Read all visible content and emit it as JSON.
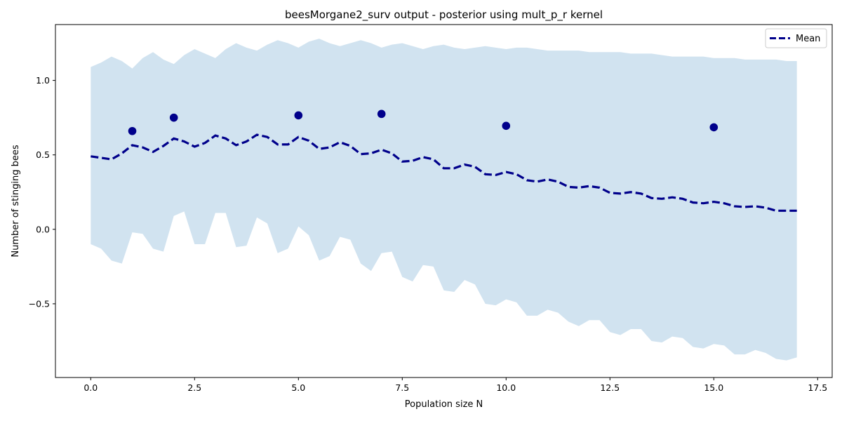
{
  "chart_data": {
    "type": "line",
    "title": "beesMorgane2_surv output - posterior using mult_p_r kernel",
    "xlabel": "Population size N",
    "ylabel": "Number of stinging bees",
    "xlim": [
      -0.85,
      17.85
    ],
    "ylim": [
      -0.995,
      1.375
    ],
    "xticks": [
      0.0,
      2.5,
      5.0,
      7.5,
      10.0,
      12.5,
      15.0,
      17.5
    ],
    "xtick_labels": [
      "0.0",
      "2.5",
      "5.0",
      "7.5",
      "10.0",
      "12.5",
      "15.0",
      "17.5"
    ],
    "yticks": [
      -0.5,
      0.0,
      0.5,
      1.0
    ],
    "ytick_labels": [
      "−0.5",
      "0.0",
      "0.5",
      "1.0"
    ],
    "grid": false,
    "legend": {
      "position": "top-right",
      "entries": [
        "Mean"
      ]
    },
    "colors": {
      "mean": "#00008b",
      "band": "#d1e3f0",
      "points": "#00008b"
    },
    "series": [
      {
        "name": "Mean",
        "style": "dashed",
        "x": [
          0,
          0.25,
          0.5,
          0.75,
          1.0,
          1.25,
          1.5,
          1.75,
          2.0,
          2.25,
          2.5,
          2.75,
          3.0,
          3.25,
          3.5,
          3.75,
          4.0,
          4.25,
          4.5,
          4.75,
          5.0,
          5.25,
          5.5,
          5.75,
          6.0,
          6.25,
          6.5,
          6.75,
          7.0,
          7.25,
          7.5,
          7.75,
          8.0,
          8.25,
          8.5,
          8.75,
          9.0,
          9.25,
          9.5,
          9.75,
          10.0,
          10.25,
          10.5,
          10.75,
          11.0,
          11.25,
          11.5,
          11.75,
          12.0,
          12.25,
          12.5,
          12.75,
          13.0,
          13.25,
          13.5,
          13.75,
          14.0,
          14.25,
          14.5,
          14.75,
          15.0,
          15.25,
          15.5,
          15.75,
          16.0,
          16.25,
          16.5,
          16.75,
          17.0
        ],
        "y": [
          0.49,
          0.48,
          0.47,
          0.51,
          0.565,
          0.55,
          0.52,
          0.56,
          0.61,
          0.59,
          0.555,
          0.58,
          0.63,
          0.61,
          0.565,
          0.59,
          0.635,
          0.62,
          0.57,
          0.57,
          0.62,
          0.595,
          0.54,
          0.55,
          0.585,
          0.56,
          0.505,
          0.51,
          0.535,
          0.51,
          0.455,
          0.46,
          0.485,
          0.47,
          0.41,
          0.41,
          0.435,
          0.42,
          0.37,
          0.365,
          0.385,
          0.37,
          0.33,
          0.32,
          0.335,
          0.32,
          0.285,
          0.28,
          0.29,
          0.28,
          0.245,
          0.24,
          0.25,
          0.24,
          0.21,
          0.205,
          0.215,
          0.205,
          0.18,
          0.175,
          0.185,
          0.175,
          0.155,
          0.15,
          0.155,
          0.145,
          0.125,
          0.125,
          0.125
        ]
      }
    ],
    "band": {
      "x": [
        0,
        0.25,
        0.5,
        0.75,
        1.0,
        1.25,
        1.5,
        1.75,
        2.0,
        2.25,
        2.5,
        2.75,
        3.0,
        3.25,
        3.5,
        3.75,
        4.0,
        4.25,
        4.5,
        4.75,
        5.0,
        5.25,
        5.5,
        5.75,
        6.0,
        6.25,
        6.5,
        6.75,
        7.0,
        7.25,
        7.5,
        7.75,
        8.0,
        8.25,
        8.5,
        8.75,
        9.0,
        9.25,
        9.5,
        9.75,
        10.0,
        10.25,
        10.5,
        10.75,
        11.0,
        11.25,
        11.5,
        11.75,
        12.0,
        12.25,
        12.5,
        12.75,
        13.0,
        13.25,
        13.5,
        13.75,
        14.0,
        14.25,
        14.5,
        14.75,
        15.0,
        15.25,
        15.5,
        15.75,
        16.0,
        16.25,
        16.5,
        16.75,
        17.0
      ],
      "upper": [
        1.09,
        1.12,
        1.16,
        1.13,
        1.08,
        1.15,
        1.19,
        1.14,
        1.11,
        1.17,
        1.21,
        1.18,
        1.15,
        1.21,
        1.25,
        1.22,
        1.2,
        1.24,
        1.27,
        1.25,
        1.22,
        1.26,
        1.28,
        1.25,
        1.23,
        1.25,
        1.27,
        1.25,
        1.22,
        1.24,
        1.25,
        1.23,
        1.21,
        1.23,
        1.24,
        1.22,
        1.21,
        1.22,
        1.23,
        1.22,
        1.21,
        1.22,
        1.22,
        1.21,
        1.2,
        1.2,
        1.2,
        1.2,
        1.19,
        1.19,
        1.19,
        1.19,
        1.18,
        1.18,
        1.18,
        1.17,
        1.16,
        1.16,
        1.16,
        1.16,
        1.15,
        1.15,
        1.15,
        1.14,
        1.14,
        1.14,
        1.14,
        1.13,
        1.13
      ],
      "lower": [
        -0.1,
        -0.13,
        -0.21,
        -0.23,
        -0.02,
        -0.03,
        -0.13,
        -0.15,
        0.09,
        0.12,
        -0.1,
        -0.1,
        0.11,
        0.11,
        -0.12,
        -0.11,
        0.08,
        0.04,
        -0.16,
        -0.13,
        0.02,
        -0.04,
        -0.21,
        -0.18,
        -0.05,
        -0.07,
        -0.23,
        -0.28,
        -0.16,
        -0.15,
        -0.32,
        -0.35,
        -0.24,
        -0.25,
        -0.41,
        -0.42,
        -0.34,
        -0.37,
        -0.5,
        -0.51,
        -0.47,
        -0.49,
        -0.58,
        -0.58,
        -0.54,
        -0.56,
        -0.62,
        -0.65,
        -0.61,
        -0.61,
        -0.69,
        -0.71,
        -0.67,
        -0.67,
        -0.75,
        -0.76,
        -0.72,
        -0.73,
        -0.79,
        -0.8,
        -0.77,
        -0.78,
        -0.84,
        -0.84,
        -0.81,
        -0.83,
        -0.87,
        -0.88,
        -0.86
      ]
    },
    "points": {
      "x": [
        1,
        2,
        5,
        7,
        10,
        15
      ],
      "y": [
        0.66,
        0.75,
        0.765,
        0.775,
        0.695,
        0.685
      ]
    }
  }
}
